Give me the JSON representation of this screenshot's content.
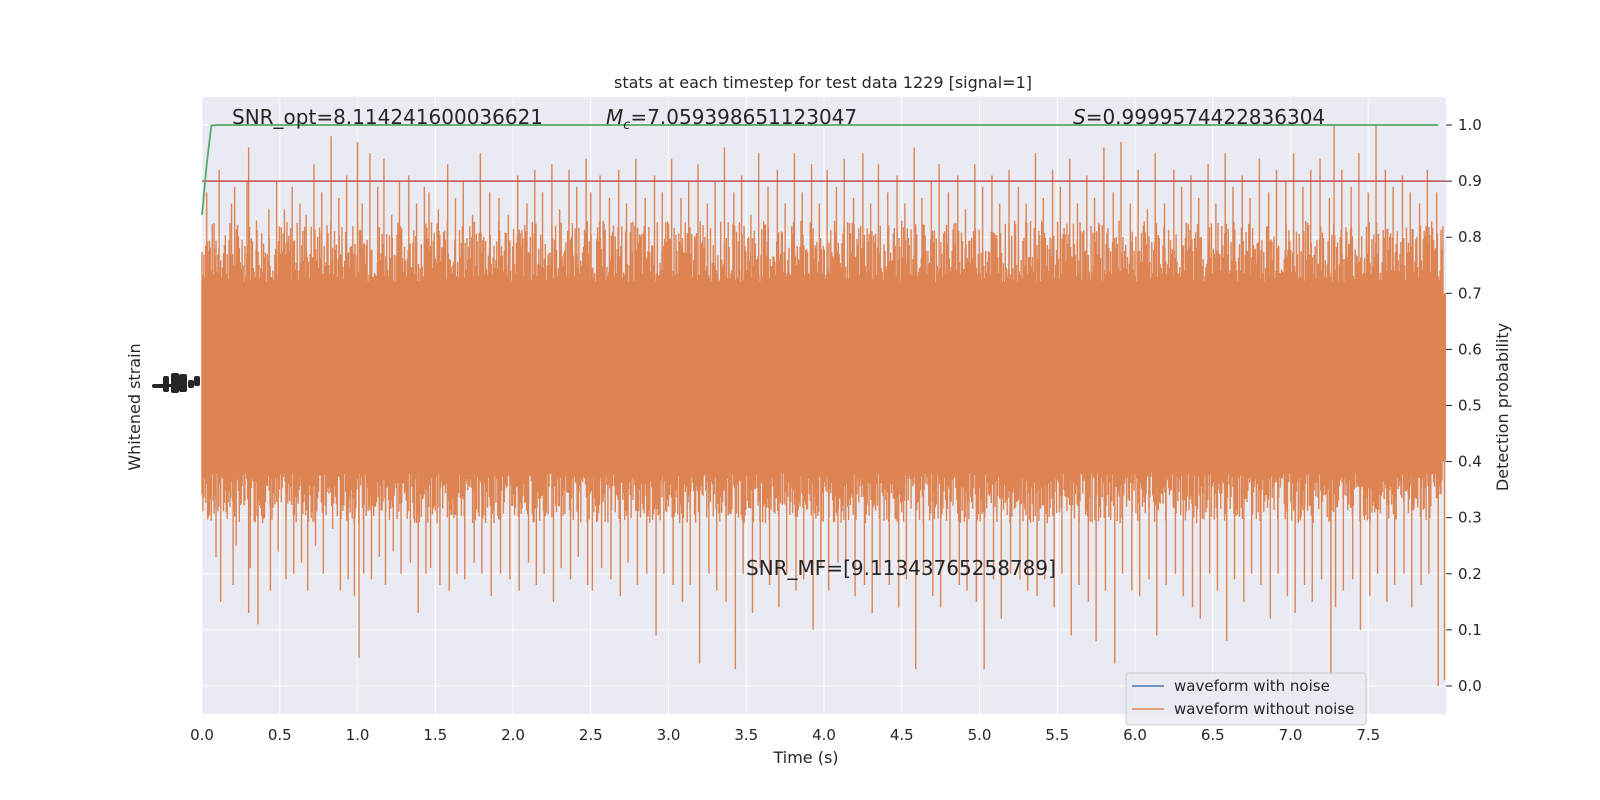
{
  "chart_data": {
    "type": "line",
    "title": "stats at each timestep for test data 1229 [signal=1]",
    "xlabel": "Time (s)",
    "ylabel_left": "Whitened strain",
    "ylabel_right": "Detection probability",
    "xlim": [
      0.0,
      8.0
    ],
    "xticks": [
      "0.0",
      "0.5",
      "1.0",
      "1.5",
      "2.0",
      "2.5",
      "3.0",
      "3.5",
      "4.0",
      "4.5",
      "5.0",
      "5.5",
      "6.0",
      "6.5",
      "7.0",
      "7.5"
    ],
    "ylim_right": [
      -0.05,
      1.05
    ],
    "yticks_right": [
      "0.0",
      "0.1",
      "0.2",
      "0.3",
      "0.4",
      "0.5",
      "0.6",
      "0.7",
      "0.8",
      "0.9",
      "1.0"
    ],
    "grid": true,
    "legend_position": "lower-right",
    "annotations": {
      "snr_opt": "SNR_opt=8.114241600036621",
      "mc_symbol": "M",
      "mc_subscript": "c",
      "mc_value": "=7.059398651123047",
      "s_symbol": "S",
      "s_value": "=0.9999574422836304",
      "snr_mf": "SNR_MF=[9.11343765258789]"
    },
    "series": [
      {
        "name": "waveform with noise",
        "color": "#4c72b0"
      },
      {
        "name": "waveform without noise",
        "color": "#dd8452"
      }
    ],
    "detection_probability": {
      "color": "#55a868",
      "x": [
        0.0,
        0.03,
        0.06,
        0.1,
        0.2,
        0.5,
        1.0,
        2.0,
        3.0,
        4.0,
        5.0,
        6.0,
        7.0,
        7.95
      ],
      "y": [
        0.84,
        0.93,
        0.999,
        1.0,
        1.0,
        1.0,
        1.0,
        1.0,
        1.0,
        1.0,
        1.0,
        1.0,
        1.0,
        1.0
      ]
    },
    "threshold": {
      "value": 0.9,
      "color": "#c44e52"
    },
    "waveform_spikes": {
      "x": [
        0.03,
        0.08,
        0.11,
        0.19,
        0.21,
        0.29,
        0.3,
        0.35,
        0.43,
        0.48,
        0.53,
        0.58,
        0.63,
        0.67,
        0.72,
        0.77,
        0.83,
        0.88,
        0.93,
        0.97,
        1.0,
        1.03,
        1.08,
        1.13,
        1.17,
        1.22,
        1.27,
        1.33,
        1.38,
        1.43,
        1.46,
        1.52,
        1.58,
        1.63,
        1.68,
        1.74,
        1.79,
        1.85,
        1.91,
        1.97,
        2.03,
        2.09,
        2.14,
        2.19,
        2.25,
        2.3,
        2.36,
        2.41,
        2.47,
        2.5,
        2.56,
        2.62,
        2.68,
        2.73,
        2.79,
        2.85,
        2.91,
        2.96,
        3.02,
        3.08,
        3.13,
        3.19,
        3.25,
        3.3,
        3.36,
        3.42,
        3.47,
        3.53,
        3.58,
        3.64,
        3.7,
        3.75,
        3.81,
        3.86,
        3.92,
        3.97,
        4.02,
        4.08,
        4.13,
        4.19,
        4.25,
        4.3,
        4.35,
        4.41,
        4.47,
        4.52,
        4.58,
        4.63,
        4.69,
        4.74,
        4.8,
        4.86,
        4.91,
        4.97,
        5.02,
        5.08,
        5.13,
        5.19,
        5.25,
        5.3,
        5.36,
        5.41,
        5.47,
        5.52,
        5.58,
        5.63,
        5.69,
        5.74,
        5.8,
        5.86,
        5.91,
        5.97,
        6.02,
        6.08,
        6.13,
        6.19,
        6.25,
        6.3,
        6.36,
        6.41,
        6.47,
        6.52,
        6.58,
        6.63,
        6.69,
        6.74,
        6.8,
        6.86,
        6.91,
        6.97,
        7.02,
        7.08,
        7.13,
        7.19,
        7.25,
        7.28,
        7.33,
        7.39,
        7.44,
        7.5,
        7.55,
        7.61,
        7.66,
        7.72,
        7.77,
        7.83,
        7.88,
        7.94,
        7.98
      ],
      "high": [
        0.88,
        0.78,
        0.92,
        0.86,
        0.89,
        0.9,
        0.96,
        0.83,
        0.85,
        0.9,
        0.85,
        0.89,
        0.86,
        0.84,
        0.93,
        0.88,
        0.98,
        0.87,
        0.91,
        0.82,
        0.97,
        0.86,
        0.95,
        0.89,
        0.94,
        0.84,
        0.9,
        0.91,
        0.86,
        0.89,
        0.88,
        0.85,
        0.93,
        0.87,
        0.9,
        0.84,
        0.95,
        0.88,
        0.87,
        0.84,
        0.91,
        0.86,
        0.92,
        0.88,
        0.93,
        0.85,
        0.92,
        0.89,
        0.94,
        0.88,
        0.91,
        0.87,
        0.92,
        0.86,
        0.94,
        0.87,
        0.91,
        0.88,
        0.94,
        0.87,
        0.9,
        0.93,
        0.86,
        0.9,
        0.96,
        0.88,
        0.91,
        0.84,
        0.95,
        0.89,
        0.92,
        0.86,
        0.95,
        0.88,
        0.93,
        0.86,
        0.92,
        0.89,
        0.94,
        0.87,
        0.95,
        0.86,
        0.93,
        0.88,
        0.91,
        0.86,
        0.96,
        0.87,
        0.9,
        0.93,
        0.88,
        0.91,
        0.85,
        0.93,
        0.89,
        0.91,
        0.86,
        0.92,
        0.89,
        0.86,
        0.95,
        0.87,
        0.92,
        0.89,
        0.94,
        0.86,
        0.91,
        0.87,
        0.96,
        0.88,
        0.97,
        0.86,
        0.92,
        0.85,
        0.95,
        0.86,
        0.92,
        0.89,
        0.91,
        0.87,
        0.93,
        0.86,
        0.95,
        0.89,
        0.91,
        0.87,
        0.94,
        0.88,
        0.92,
        0.9,
        0.95,
        0.89,
        0.92,
        0.94,
        0.87,
        1.0,
        0.92,
        0.89,
        0.95,
        0.88,
        1.0,
        0.92,
        0.89,
        0.91,
        0.88,
        0.86,
        0.92,
        0.88,
        0.82
      ],
      "low": [
        0.3,
        0.23,
        0.15,
        0.18,
        0.25,
        0.13,
        0.21,
        0.11,
        0.17,
        0.24,
        0.19,
        0.2,
        0.22,
        0.17,
        0.25,
        0.2,
        0.28,
        0.17,
        0.19,
        0.16,
        0.05,
        0.2,
        0.19,
        0.23,
        0.18,
        0.24,
        0.2,
        0.22,
        0.13,
        0.2,
        0.21,
        0.18,
        0.17,
        0.2,
        0.19,
        0.22,
        0.2,
        0.16,
        0.2,
        0.19,
        0.17,
        0.22,
        0.18,
        0.2,
        0.15,
        0.21,
        0.19,
        0.23,
        0.18,
        0.17,
        0.21,
        0.19,
        0.16,
        0.22,
        0.18,
        0.2,
        0.09,
        0.2,
        0.18,
        0.15,
        0.18,
        0.04,
        0.2,
        0.17,
        0.15,
        0.03,
        0.2,
        0.13,
        0.21,
        0.18,
        0.14,
        0.2,
        0.17,
        0.19,
        0.1,
        0.21,
        0.17,
        0.22,
        0.2,
        0.16,
        0.18,
        0.13,
        0.2,
        0.18,
        0.14,
        0.19,
        0.03,
        0.2,
        0.16,
        0.14,
        0.2,
        0.18,
        0.17,
        0.15,
        0.03,
        0.19,
        0.12,
        0.2,
        0.19,
        0.17,
        0.16,
        0.19,
        0.14,
        0.2,
        0.09,
        0.18,
        0.15,
        0.08,
        0.17,
        0.04,
        0.2,
        0.17,
        0.16,
        0.19,
        0.09,
        0.18,
        0.2,
        0.16,
        0.14,
        0.12,
        0.2,
        0.17,
        0.08,
        0.19,
        0.15,
        0.2,
        0.18,
        0.12,
        0.2,
        0.16,
        0.13,
        0.18,
        0.15,
        0.19,
        0.02,
        0.14,
        0.17,
        0.19,
        0.1,
        0.16,
        0.2,
        0.15,
        0.18,
        0.2,
        0.14,
        0.18,
        0.2,
        0.0,
        0.01
      ],
      "core_high": 0.7,
      "core_low": 0.4
    }
  }
}
